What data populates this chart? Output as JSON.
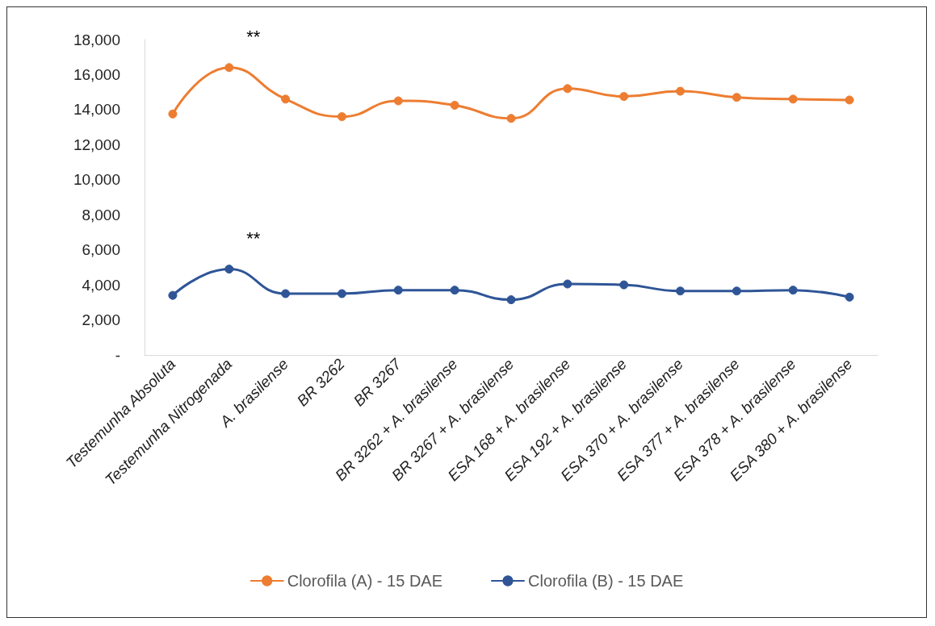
{
  "chart_data": {
    "type": "line",
    "categories": [
      "Testemunha Absoluta",
      "Testemunha Nitrogenada",
      "A. brasilense",
      "BR 3262",
      "BR 3267",
      "BR 3262 + A. brasilense",
      "BR 3267 + A. brasilense",
      "ESA 168 + A. brasilense",
      "ESA 192 + A. brasilense",
      "ESA 370 + A. brasilense",
      "ESA 377 + A. brasilense",
      "ESA 378 + A. brasilense",
      "ESA 380 + A. brasilense"
    ],
    "series": [
      {
        "name": "Clorofila (A) - 15 DAE",
        "color": "#ed7d31",
        "values": [
          13750,
          16400,
          14600,
          13600,
          14500,
          14250,
          13500,
          15200,
          14750,
          15050,
          14700,
          14600,
          14550
        ]
      },
      {
        "name": "Clorofila (B) - 15 DAE",
        "color": "#2f5597",
        "values": [
          3400,
          4900,
          3500,
          3500,
          3700,
          3700,
          3150,
          4050,
          4000,
          3650,
          3650,
          3700,
          3300
        ]
      }
    ],
    "ylim": [
      0,
      18000
    ],
    "yticks": [
      {
        "value": 0,
        "label": "-"
      },
      {
        "value": 2000,
        "label": "2,000"
      },
      {
        "value": 4000,
        "label": "4,000"
      },
      {
        "value": 6000,
        "label": "6,000"
      },
      {
        "value": 8000,
        "label": "8,000"
      },
      {
        "value": 10000,
        "label": "10,000"
      },
      {
        "value": 12000,
        "label": "12,000"
      },
      {
        "value": 14000,
        "label": "14,000"
      },
      {
        "value": 16000,
        "label": "16,000"
      },
      {
        "value": 18000,
        "label": "18,000"
      }
    ],
    "annotations": [
      "**",
      "**"
    ],
    "marker": "circle",
    "line_style": "solid",
    "grid": false,
    "legend": "bottom"
  }
}
